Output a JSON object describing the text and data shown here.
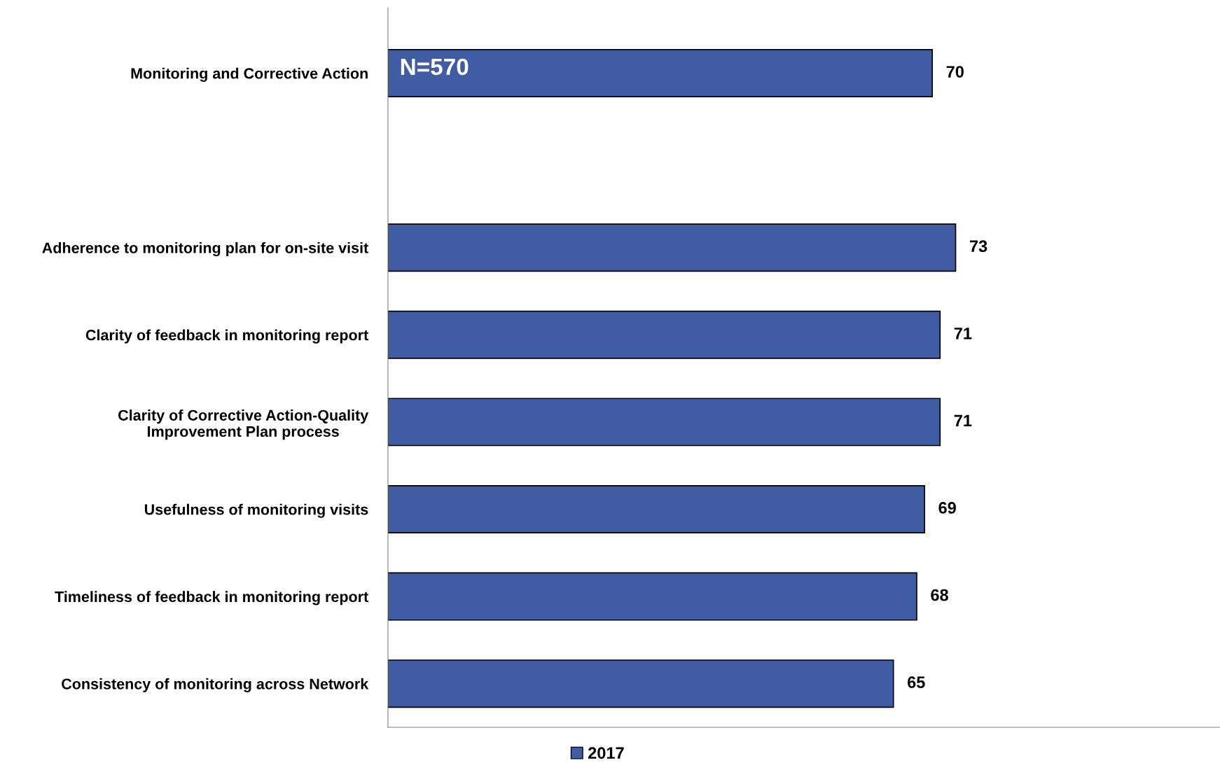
{
  "chart_data": {
    "type": "bar",
    "orientation": "horizontal",
    "categories": [
      "Monitoring and Corrective Action",
      null,
      "Adherence to monitoring plan for on-site visit",
      "Clarity of feedback in monitoring report",
      "Clarity of Corrective Action-Quality\nImprovement Plan process",
      "Usefulness of monitoring visits",
      "Timeliness of feedback in monitoring report",
      "Consistency of monitoring across Network"
    ],
    "series": [
      {
        "name": "2017",
        "color": "#3f5ca5",
        "values": [
          70,
          null,
          73,
          71,
          71,
          69,
          68,
          65
        ]
      }
    ],
    "xlim": [
      0,
      107
    ],
    "data_labels": true,
    "legend": "bottom",
    "grid": false,
    "annotations": [
      "N=570"
    ]
  }
}
